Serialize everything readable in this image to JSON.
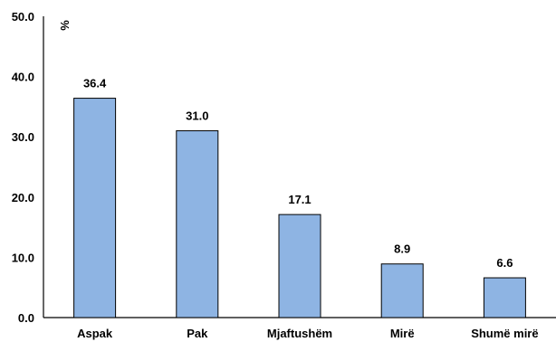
{
  "chart_data": {
    "type": "bar",
    "categories": [
      "Aspak",
      "Pak",
      "Mjaftushëm",
      "Mirë",
      "Shumë mirë"
    ],
    "values": [
      36.4,
      31.0,
      17.1,
      8.9,
      6.6
    ],
    "value_labels": [
      "36.4",
      "31.0",
      "17.1",
      "8.9",
      "6.6"
    ],
    "title": "",
    "xlabel": "",
    "ylabel": "",
    "unit": "%",
    "ylim": [
      0,
      50
    ],
    "yticks": [
      "0.0",
      "10.0",
      "20.0",
      "30.0",
      "40.0",
      "50.0"
    ],
    "grid": false,
    "legend": "none",
    "bar_color": "#8EB4E3",
    "bar_border_color": "#000000"
  }
}
